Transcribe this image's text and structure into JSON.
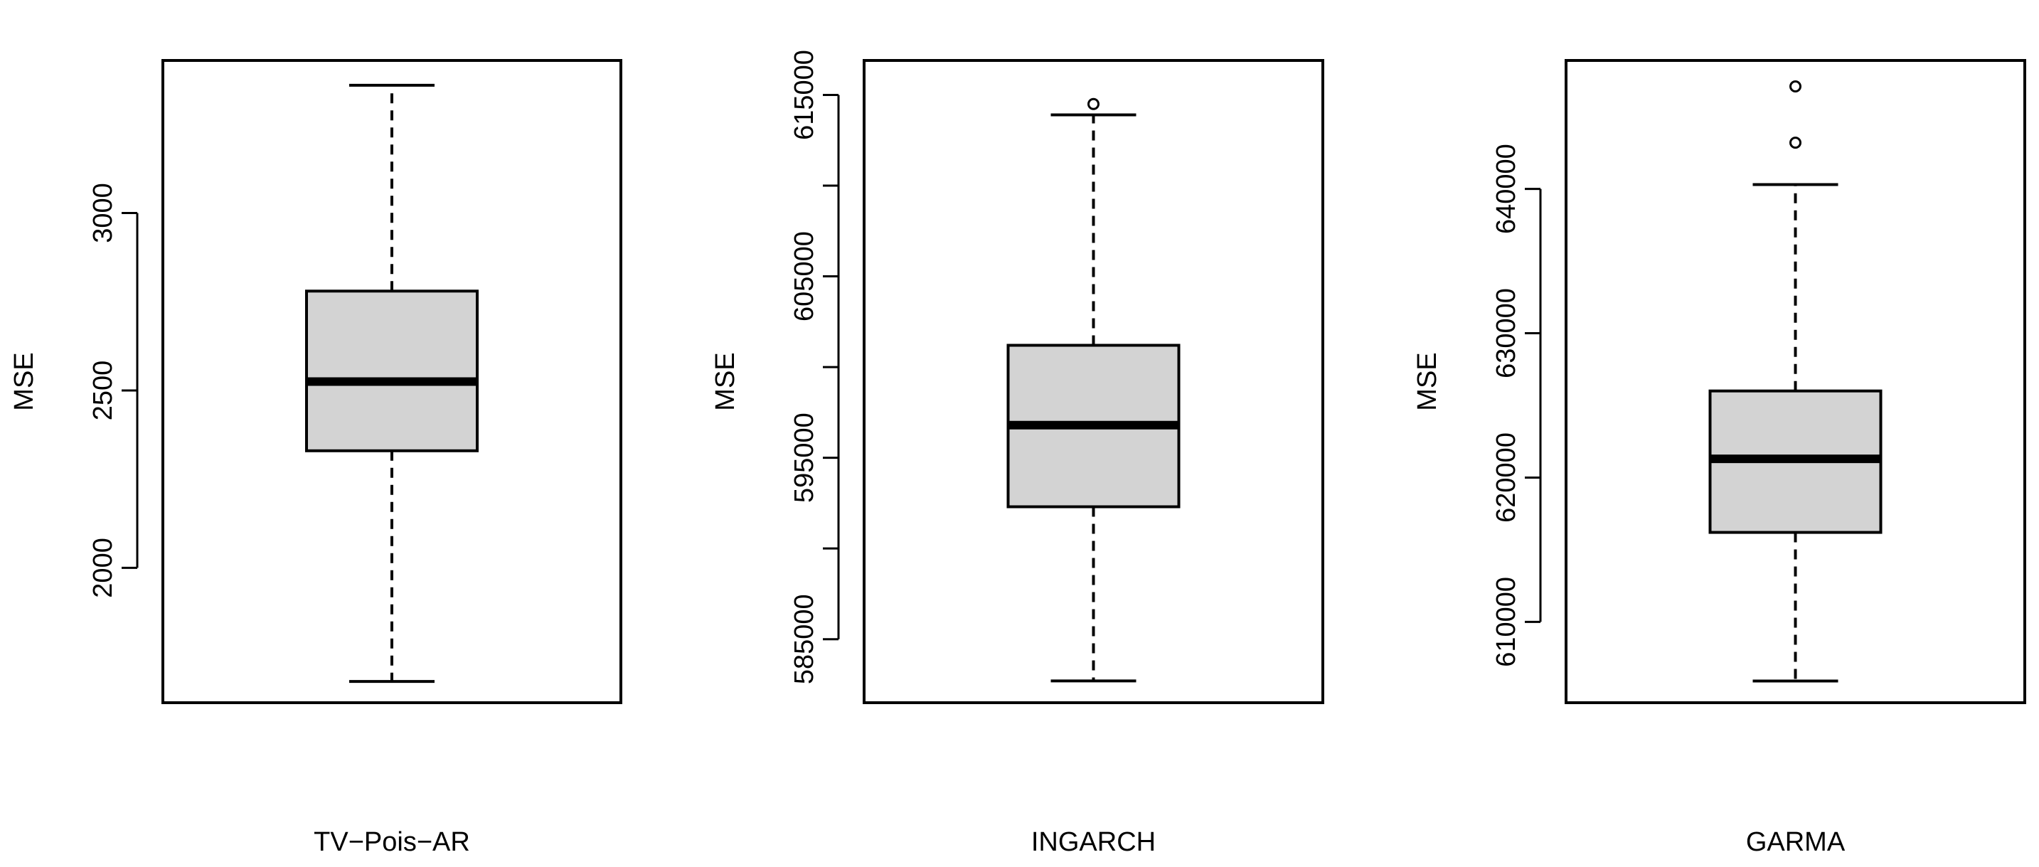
{
  "chart_data": [
    {
      "type": "boxplot",
      "xlabel": "TV−Pois−AR",
      "ylabel": "MSE",
      "ylim": [
        1620,
        3430
      ],
      "yticks": [
        2000,
        2500,
        3000
      ],
      "ytick_labels": [
        "2000",
        "2500",
        "3000"
      ],
      "box": {
        "whisker_low": 1680,
        "q1": 2330,
        "median": 2525,
        "q3": 2780,
        "whisker_high": 3360
      },
      "outliers": [],
      "fill": "#d3d3d3"
    },
    {
      "type": "boxplot",
      "xlabel": "INGARCH",
      "ylabel": "MSE",
      "ylim": [
        581500,
        616900
      ],
      "yticks": [
        585000,
        590000,
        595000,
        600000,
        605000,
        610000,
        615000
      ],
      "ytick_labels": [
        "585000",
        "",
        "595000",
        "",
        "605000",
        "",
        "615000"
      ],
      "box": {
        "whisker_low": 582700,
        "q1": 592300,
        "median": 596800,
        "q3": 601200,
        "whisker_high": 613900
      },
      "outliers": [
        614500
      ],
      "fill": "#d3d3d3"
    },
    {
      "type": "boxplot",
      "xlabel": "GARMA",
      "ylabel": "MSE",
      "ylim": [
        604400,
        648900
      ],
      "yticks": [
        610000,
        620000,
        630000,
        640000
      ],
      "ytick_labels": [
        "610000",
        "620000",
        "630000",
        "640000"
      ],
      "box": {
        "whisker_low": 605900,
        "q1": 616200,
        "median": 621300,
        "q3": 626000,
        "whisker_high": 640300
      },
      "outliers": [
        643200,
        647100
      ],
      "fill": "#d3d3d3"
    }
  ]
}
